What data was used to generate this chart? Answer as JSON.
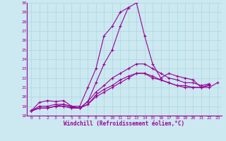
{
  "xlabel": "Windchill (Refroidissement éolien,°C)",
  "bg_color": "#cce8f0",
  "line_color": "#990099",
  "grid_color": "#aad8e0",
  "xlim": [
    -0.5,
    23.5
  ],
  "ylim": [
    18,
    30
  ],
  "yticks": [
    18,
    19,
    20,
    21,
    22,
    23,
    24,
    25,
    26,
    27,
    28,
    29,
    30
  ],
  "xticks": [
    0,
    1,
    2,
    3,
    4,
    5,
    6,
    7,
    8,
    9,
    10,
    11,
    12,
    13,
    14,
    15,
    16,
    17,
    18,
    19,
    20,
    21,
    22,
    23
  ],
  "lines": [
    [
      18.5,
      19.4,
      19.6,
      19.5,
      19.6,
      19.0,
      19.0,
      21.0,
      23.0,
      26.5,
      27.5,
      29.0,
      29.5,
      30.0,
      26.5,
      23.5,
      22.0,
      22.5,
      22.2,
      22.0,
      21.8,
      21.0,
      21.0,
      21.5
    ],
    [
      18.5,
      19.0,
      19.0,
      19.2,
      19.2,
      19.0,
      18.8,
      19.5,
      21.5,
      23.5,
      25.0,
      27.5,
      29.5,
      null,
      null,
      null,
      null,
      null,
      null,
      null,
      null,
      null,
      null,
      null
    ],
    [
      18.5,
      18.8,
      18.8,
      19.0,
      19.0,
      18.8,
      18.8,
      19.2,
      20.0,
      20.5,
      21.0,
      21.5,
      22.0,
      22.5,
      22.5,
      22.0,
      21.8,
      21.5,
      21.2,
      21.0,
      21.0,
      21.0,
      21.2,
      null
    ],
    [
      18.5,
      18.8,
      18.8,
      19.0,
      19.0,
      18.8,
      18.8,
      19.2,
      20.2,
      20.8,
      21.2,
      21.8,
      22.2,
      22.5,
      22.5,
      22.2,
      21.8,
      21.5,
      21.2,
      21.2,
      21.0,
      21.0,
      21.3,
      null
    ],
    [
      18.5,
      18.8,
      18.8,
      19.0,
      19.2,
      18.9,
      18.8,
      19.5,
      20.5,
      21.2,
      22.0,
      22.5,
      23.0,
      23.5,
      23.5,
      23.0,
      22.5,
      22.0,
      21.8,
      21.5,
      21.5,
      21.2,
      21.4,
      null
    ]
  ]
}
